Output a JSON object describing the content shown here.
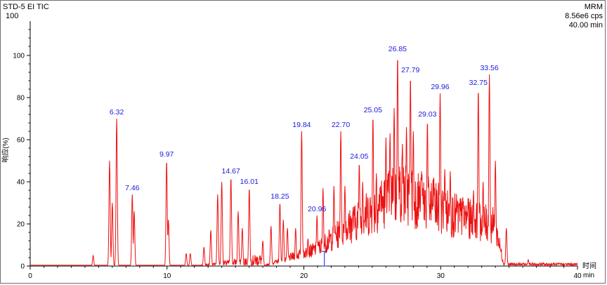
{
  "header": {
    "title": "STD-5 EI TIC",
    "scale_max": "100",
    "mode": "MRM",
    "intensity": "8.56e6 cps",
    "duration": "40.00 min"
  },
  "colors": {
    "trace": "#ee1111",
    "peak_label": "#1a1adc",
    "axis": "#000000"
  },
  "chart_data": {
    "type": "line",
    "xlabel": "时间",
    "xunit": "min",
    "ylabel": "响应(%)",
    "xlim": [
      0,
      40
    ],
    "ylim": [
      0,
      100
    ],
    "x_ticks": [
      0,
      10,
      20,
      30,
      40
    ],
    "y_ticks": [
      0,
      20,
      40,
      60,
      80,
      100
    ],
    "grid": false,
    "peaks": [
      {
        "label": "6.32",
        "x": 6.32,
        "y": 70
      },
      {
        "label": "7.46",
        "x": 7.46,
        "y": 34
      },
      {
        "label": "9.97",
        "x": 9.97,
        "y": 50
      },
      {
        "label": "14.67",
        "x": 14.67,
        "y": 42
      },
      {
        "label": "16.01",
        "x": 16.01,
        "y": 37
      },
      {
        "label": "18.25",
        "x": 18.25,
        "y": 30
      },
      {
        "label": "19.84",
        "x": 19.84,
        "y": 64
      },
      {
        "label": "20.96",
        "x": 20.96,
        "y": 24
      },
      {
        "label": "22.70",
        "x": 22.7,
        "y": 64
      },
      {
        "label": "24.05",
        "x": 24.05,
        "y": 49
      },
      {
        "label": "25.05",
        "x": 25.05,
        "y": 71
      },
      {
        "label": "26.85",
        "x": 26.85,
        "y": 100
      },
      {
        "label": "27.79",
        "x": 27.79,
        "y": 90
      },
      {
        "label": "29.03",
        "x": 29.03,
        "y": 69
      },
      {
        "label": "29.96",
        "x": 29.96,
        "y": 82
      },
      {
        "label": "32.75",
        "x": 32.75,
        "y": 84
      },
      {
        "label": "33.56",
        "x": 33.56,
        "y": 91
      }
    ],
    "minor_peaks": [
      [
        4.6,
        5
      ],
      [
        5.8,
        50
      ],
      [
        6.0,
        30
      ],
      [
        7.6,
        26
      ],
      [
        10.1,
        22
      ],
      [
        11.4,
        6
      ],
      [
        11.7,
        6
      ],
      [
        12.7,
        9
      ],
      [
        13.2,
        17
      ],
      [
        13.7,
        34
      ],
      [
        14.0,
        40
      ],
      [
        15.2,
        26
      ],
      [
        15.5,
        18
      ],
      [
        17.0,
        12
      ],
      [
        17.6,
        19
      ],
      [
        18.5,
        22
      ],
      [
        18.8,
        18
      ],
      [
        19.4,
        18
      ],
      [
        20.3,
        13
      ],
      [
        21.4,
        37
      ],
      [
        22.2,
        38
      ],
      [
        23.0,
        38
      ],
      [
        23.6,
        28
      ],
      [
        24.3,
        40
      ],
      [
        25.3,
        44
      ],
      [
        25.6,
        38
      ],
      [
        26.0,
        61
      ],
      [
        26.3,
        63
      ],
      [
        26.6,
        75
      ],
      [
        27.2,
        58
      ],
      [
        27.5,
        66
      ],
      [
        28.0,
        64
      ],
      [
        28.6,
        45
      ],
      [
        29.5,
        42
      ],
      [
        30.3,
        46
      ],
      [
        30.7,
        45
      ],
      [
        31.2,
        28
      ],
      [
        31.6,
        32
      ],
      [
        32.0,
        30
      ],
      [
        32.4,
        36
      ],
      [
        33.1,
        40
      ],
      [
        34.0,
        50
      ],
      [
        34.8,
        18
      ],
      [
        36.4,
        3
      ],
      [
        38.2,
        1
      ],
      [
        39.1,
        1
      ]
    ]
  }
}
